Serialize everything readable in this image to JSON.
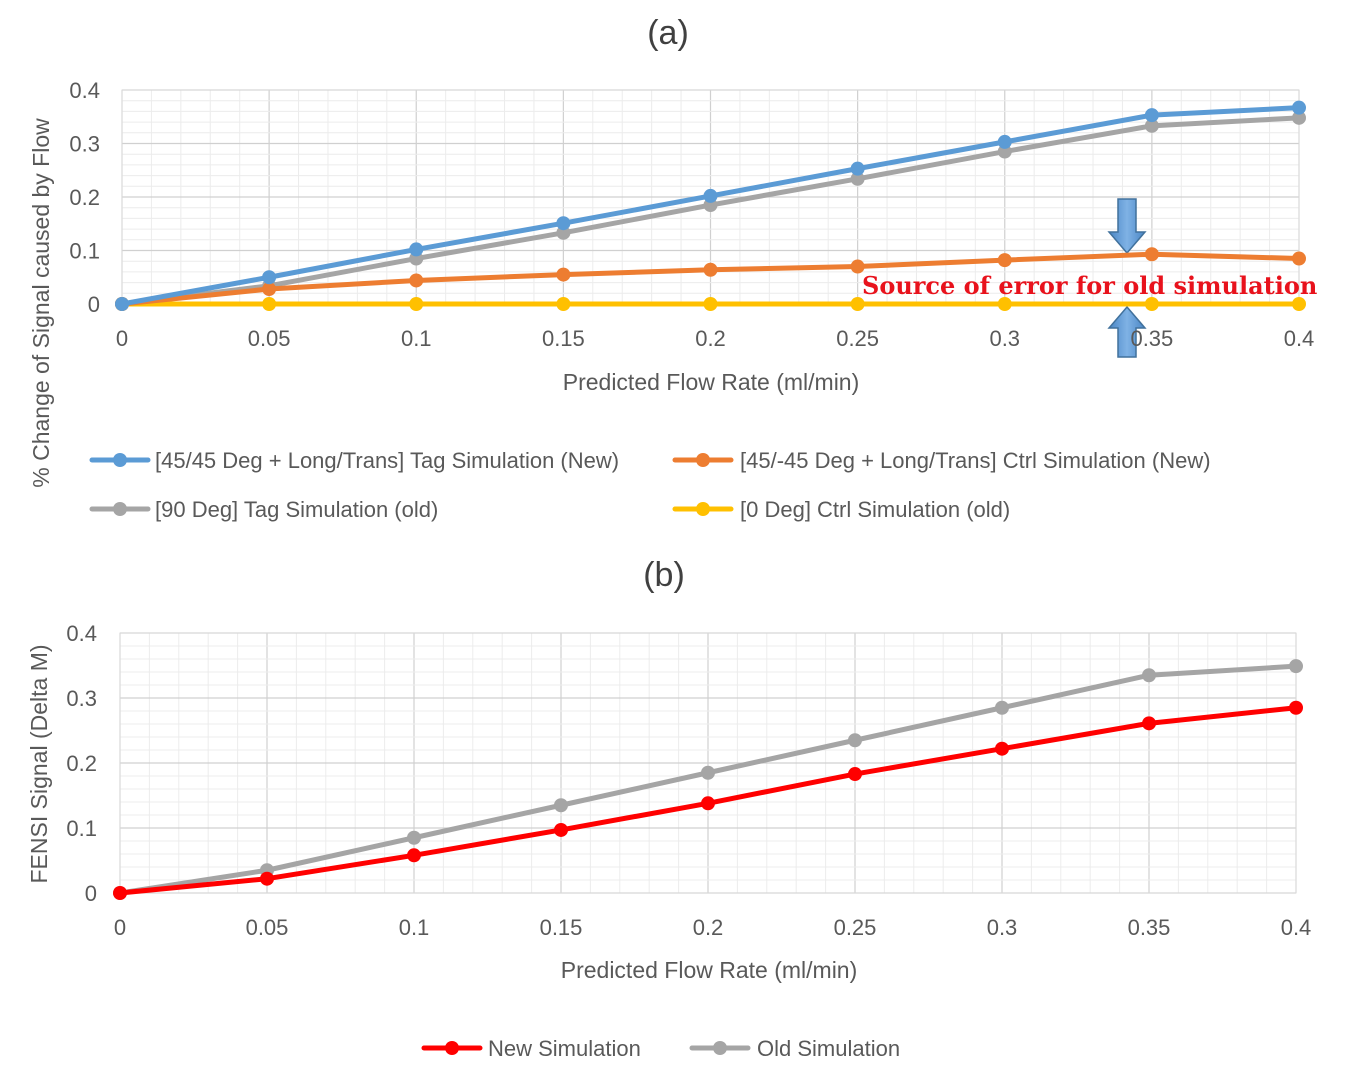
{
  "chart_data": [
    {
      "type": "line",
      "title": "(a)",
      "xlabel": "Predicted Flow Rate (ml/min)",
      "ylabel": "% Change of Signal caused by Flow",
      "x": [
        0,
        0.05,
        0.1,
        0.15,
        0.2,
        0.25,
        0.3,
        0.35,
        0.4
      ],
      "x_tick_labels": [
        "0",
        "0.05",
        "0.1",
        "0.15",
        "0.2",
        "0.25",
        "0.3",
        "0.35",
        "0.4"
      ],
      "y_ticks": [
        0,
        0.1,
        0.2,
        0.3,
        0.4
      ],
      "y_tick_labels": [
        "0",
        "0.1",
        "0.2",
        "0.3",
        "0.4"
      ],
      "xlim": [
        0,
        0.4
      ],
      "ylim": [
        0,
        0.4
      ],
      "grid": true,
      "legend_position": "bottom",
      "series": [
        {
          "name": "[45/45 Deg + Long/Trans] Tag Simulation (New)",
          "color": "#5b9bd5",
          "values": [
            0,
            0.05,
            0.102,
            0.151,
            0.202,
            0.253,
            0.303,
            0.353,
            0.367
          ]
        },
        {
          "name": "[45/-45 Deg + Long/Trans] Ctrl Simulation (New)",
          "color": "#ed7d31",
          "values": [
            0,
            0.028,
            0.044,
            0.055,
            0.064,
            0.07,
            0.082,
            0.093,
            0.085
          ]
        },
        {
          "name": "[90 Deg] Tag Simulation (old)",
          "color": "#a5a5a5",
          "values": [
            0,
            0.034,
            0.085,
            0.133,
            0.185,
            0.234,
            0.285,
            0.333,
            0.348
          ]
        },
        {
          "name": "[0 Deg] Ctrl Simulation (old)",
          "color": "#ffc000",
          "values": [
            0,
            0,
            0,
            0,
            0,
            0,
            0,
            0,
            0
          ]
        }
      ],
      "legend_layout": [
        [
          0,
          1
        ],
        [
          2,
          3
        ]
      ],
      "annotation": {
        "text": "Source of error for old simulation",
        "color": "#e8121c",
        "arrow_color": "#5b9bd5"
      }
    },
    {
      "type": "line",
      "title": "(b)",
      "xlabel": "Predicted Flow Rate (ml/min)",
      "ylabel": "FENSI Signal (Delta M)",
      "x": [
        0,
        0.05,
        0.1,
        0.15,
        0.2,
        0.25,
        0.3,
        0.35,
        0.4
      ],
      "x_tick_labels": [
        "0",
        "0.05",
        "0.1",
        "0.15",
        "0.2",
        "0.25",
        "0.3",
        "0.35",
        "0.4"
      ],
      "y_ticks": [
        0,
        0.1,
        0.2,
        0.3,
        0.4
      ],
      "y_tick_labels": [
        "0",
        "0.1",
        "0.2",
        "0.3",
        "0.4"
      ],
      "xlim": [
        0,
        0.4
      ],
      "ylim": [
        0,
        0.4
      ],
      "grid": true,
      "legend_position": "bottom",
      "series": [
        {
          "name": "New Simulation",
          "color": "#ff0000",
          "values": [
            0,
            0.022,
            0.058,
            0.097,
            0.138,
            0.183,
            0.222,
            0.261,
            0.285
          ]
        },
        {
          "name": "Old Simulation",
          "color": "#a5a5a5",
          "values": [
            0,
            0.035,
            0.085,
            0.135,
            0.185,
            0.235,
            0.285,
            0.335,
            0.349
          ]
        }
      ],
      "legend_layout": [
        [
          0,
          1
        ]
      ]
    }
  ]
}
